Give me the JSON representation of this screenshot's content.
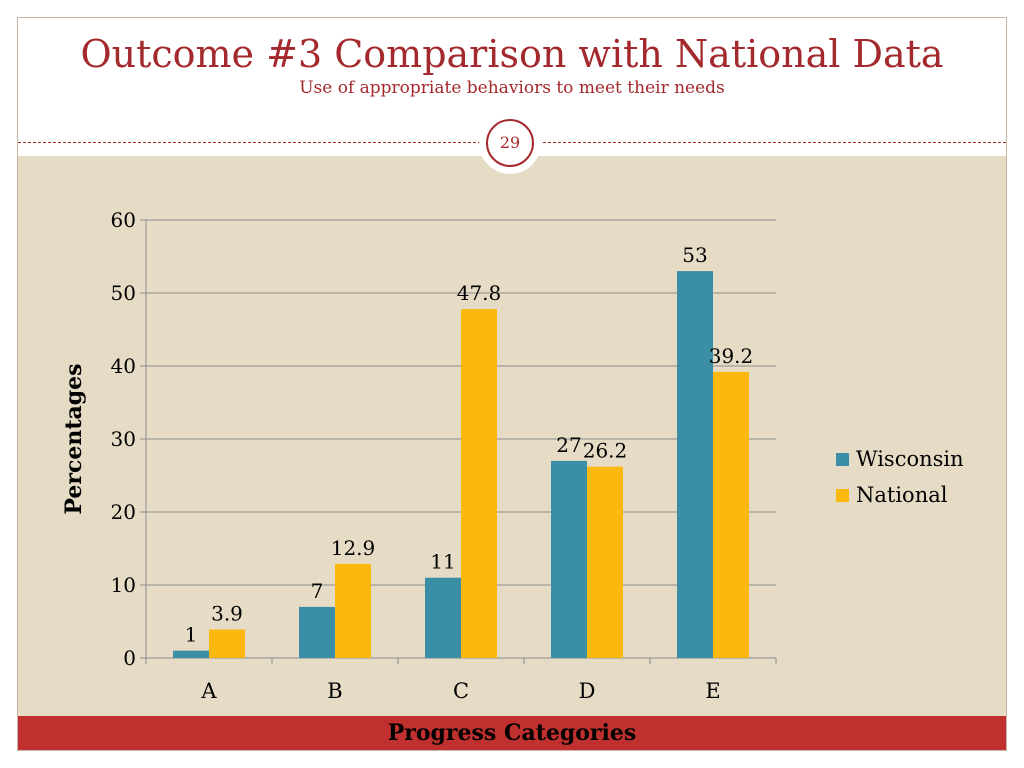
{
  "slide": {
    "title": "Outcome #3 Comparison with National Data",
    "subtitle": "Use of appropriate behaviors to meet their needs",
    "page_number": "29"
  },
  "chart_data": {
    "type": "bar",
    "categories": [
      "A",
      "B",
      "C",
      "D",
      "E"
    ],
    "series": [
      {
        "name": "Wisconsin",
        "values": [
          1,
          7,
          11,
          27,
          53
        ],
        "labels": [
          "1",
          "7",
          "11",
          "27",
          "53"
        ],
        "color": "#3a8ea5"
      },
      {
        "name": "National",
        "values": [
          3.9,
          12.9,
          47.8,
          26.2,
          39.2
        ],
        "labels": [
          "3.9",
          "12.9",
          "47.8",
          "26.2",
          "39.2"
        ],
        "color": "#fbb80f"
      }
    ],
    "xlabel": "Progress Categories",
    "ylabel": "Percentages",
    "ylim": [
      0,
      60
    ],
    "yticks": [
      0,
      10,
      20,
      30,
      40,
      50,
      60
    ],
    "grid": true,
    "legend": "right"
  },
  "colors": {
    "accent": "#a3292c",
    "panel": "#e6dcc6",
    "band": "#c0302e",
    "grid": "#8c8c8c"
  }
}
